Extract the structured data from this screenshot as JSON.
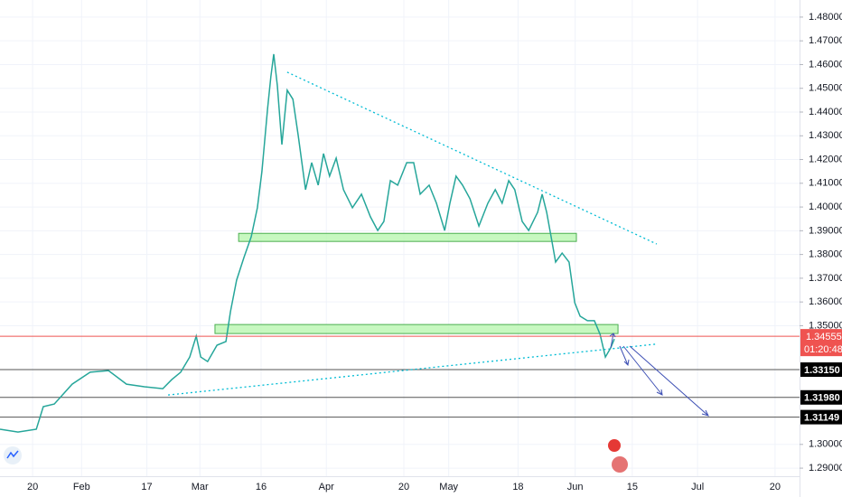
{
  "chart_data": {
    "type": "line",
    "xlim": [
      0,
      196
    ],
    "ylim": [
      1.2866,
      1.4872
    ],
    "xticks": [
      {
        "value": 8,
        "label": "20"
      },
      {
        "value": 20,
        "label": "Feb"
      },
      {
        "value": 36,
        "label": "17"
      },
      {
        "value": 49,
        "label": "Mar"
      },
      {
        "value": 64,
        "label": "16"
      },
      {
        "value": 80,
        "label": "Apr"
      },
      {
        "value": 99,
        "label": "20"
      },
      {
        "value": 110,
        "label": "May"
      },
      {
        "value": 127,
        "label": "18"
      },
      {
        "value": 141,
        "label": "Jun"
      },
      {
        "value": 155,
        "label": "15"
      },
      {
        "value": 171,
        "label": "Jul"
      },
      {
        "value": 190,
        "label": "20"
      }
    ],
    "yticks": [
      {
        "value": 1.48,
        "label": "1.48000"
      },
      {
        "value": 1.47,
        "label": "1.47000"
      },
      {
        "value": 1.46,
        "label": "1.46000"
      },
      {
        "value": 1.45,
        "label": "1.45000"
      },
      {
        "value": 1.44,
        "label": "1.44000"
      },
      {
        "value": 1.43,
        "label": "1.43000"
      },
      {
        "value": 1.42,
        "label": "1.42000"
      },
      {
        "value": 1.41,
        "label": "1.41000"
      },
      {
        "value": 1.4,
        "label": "1.40000"
      },
      {
        "value": 1.39,
        "label": "1.39000"
      },
      {
        "value": 1.38,
        "label": "1.38000"
      },
      {
        "value": 1.37,
        "label": "1.37000"
      },
      {
        "value": 1.36,
        "label": "1.36000"
      },
      {
        "value": 1.35,
        "label": "1.35000"
      },
      {
        "value": 1.3,
        "label": "1.30000"
      },
      {
        "value": 1.29,
        "label": "1.29000"
      }
    ],
    "grid": true,
    "x": [
      0,
      4.4,
      8.9,
      10.6,
      13.3,
      17.7,
      22.1,
      26.6,
      31,
      35.4,
      39.9,
      42.1,
      44.3,
      46.5,
      48.1,
      49.2,
      50.9,
      53.2,
      55.4,
      56.5,
      58,
      59.8,
      61.6,
      63.1,
      64.2,
      65.6,
      66.4,
      67.1,
      68,
      69.1,
      70.4,
      71.8,
      73.1,
      74.9,
      76.4,
      78,
      79.3,
      80.8,
      82.4,
      84.2,
      86.4,
      88.6,
      90.8,
      92.6,
      94.1,
      95.7,
      97.5,
      99.7,
      101.4,
      103,
      105.2,
      107,
      109,
      110.3,
      111.8,
      113.4,
      115.2,
      117.4,
      119.6,
      121.4,
      123.1,
      124.7,
      126.2,
      128,
      129.6,
      131.8,
      132.9,
      134,
      135.1,
      136.2,
      137.8,
      139.5,
      140.9,
      142.2,
      144,
      145.7,
      147.1,
      148.4,
      149.7,
      150.6
    ],
    "series": [
      {
        "color": "#26a69a",
        "values": [
          1.3064,
          1.3052,
          1.3064,
          1.3159,
          1.317,
          1.3254,
          1.3304,
          1.3311,
          1.3254,
          1.3243,
          1.3235,
          1.3273,
          1.3304,
          1.3368,
          1.3456,
          1.3368,
          1.3349,
          1.3418,
          1.3433,
          1.3559,
          1.3692,
          1.3787,
          1.3875,
          1.3997,
          1.4149,
          1.4415,
          1.4549,
          1.4644,
          1.4511,
          1.4263,
          1.4492,
          1.4454,
          1.4301,
          1.4073,
          1.4187,
          1.4092,
          1.4225,
          1.413,
          1.4206,
          1.4073,
          1.3997,
          1.4054,
          1.3959,
          1.3901,
          1.3939,
          1.4111,
          1.4092,
          1.4187,
          1.4187,
          1.4054,
          1.4092,
          1.4016,
          1.3901,
          1.4016,
          1.413,
          1.4092,
          1.4035,
          1.392,
          1.4016,
          1.4073,
          1.4016,
          1.4111,
          1.4073,
          1.3939,
          1.3901,
          1.3978,
          1.4054,
          1.3978,
          1.3875,
          1.3768,
          1.3806,
          1.3768,
          1.3597,
          1.354,
          1.3521,
          1.3521,
          1.3464,
          1.3368,
          1.3406,
          1.3444
        ]
      }
    ],
    "levels": [
      {
        "value": 1.3315,
        "label": "1.33150"
      },
      {
        "value": 1.3198,
        "label": "1.31980"
      },
      {
        "value": 1.31149,
        "label": "1.31149"
      }
    ],
    "current": {
      "value": 1.34555,
      "label": "1.34555",
      "countdown": "01:20:48"
    },
    "zones": [
      {
        "from": 1.3855,
        "to": 1.3889,
        "x": [
          58.5,
          141.3
        ]
      },
      {
        "from": 1.3467,
        "to": 1.3505,
        "x": [
          52.7,
          151.5
        ]
      }
    ],
    "trendlines": [
      {
        "x": [
          70.4,
          161
        ],
        "y": [
          1.4568,
          1.3844
        ]
      },
      {
        "x": [
          41.2,
          160.6
        ],
        "y": [
          1.3208,
          1.3422
        ]
      }
    ]
  }
}
